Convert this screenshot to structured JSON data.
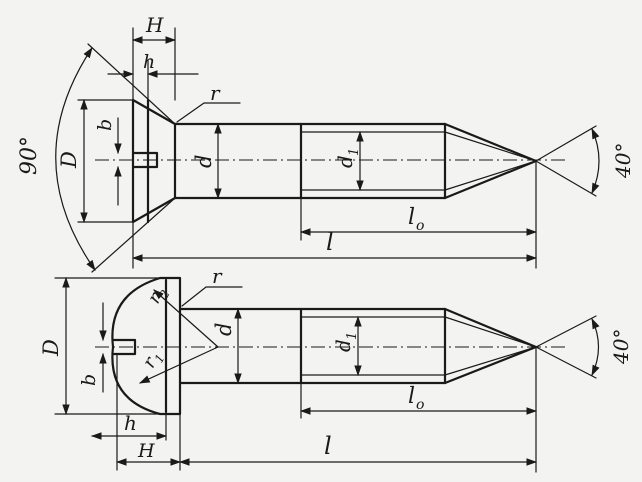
{
  "top_view": {
    "H": "H",
    "h": "h",
    "r": "r",
    "b": "b",
    "D": "D",
    "d": "d",
    "d1": "d",
    "d1_sub": "1",
    "l0": "l",
    "l0_sub": "o",
    "l": "l",
    "head_angle": "90°",
    "tip_angle": "40°"
  },
  "bottom_view": {
    "r": "r",
    "r2": "r",
    "r2_sub": "2",
    "r1": "r",
    "r1_sub": "1",
    "D": "D",
    "d": "d",
    "d1": "d",
    "d1_sub": "1",
    "b": "b",
    "h": "h",
    "H": "H",
    "l0": "l",
    "l0_sub": "o",
    "l": "l",
    "tip_angle": "40°"
  }
}
